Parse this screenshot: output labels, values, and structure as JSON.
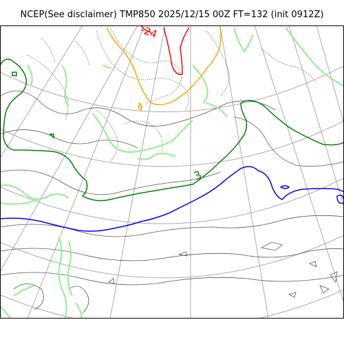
{
  "title": "NCEP(See disclaimer) TMP850 2025/12/15 00Z FT=132 (init 0912Z)",
  "map": {
    "contour_labels": [
      {
        "text": "3",
        "color": "#008000"
      },
      {
        "text": "-24",
        "color": "#ff0000"
      }
    ],
    "colors": {
      "frame": "#000000",
      "graticule": "#aaaaaa",
      "coastline": "#555555",
      "zero_isotherm": "#0000ff",
      "three_isotherm": "#008000",
      "warm_band": "#90ee90",
      "cold_isotherm_orange": "#ffa500",
      "cold_isotherm_red": "#ff0000"
    }
  }
}
